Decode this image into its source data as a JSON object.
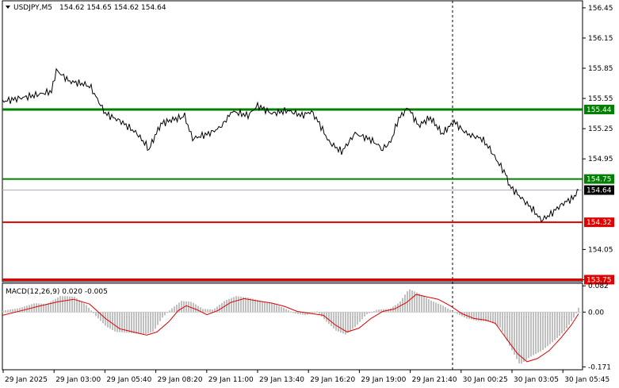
{
  "header": {
    "dropdown_icon": "triangle-down-icon",
    "symbol_label": "USDJPY,M5",
    "ohlc": "154.62 154.65 154.62 154.64"
  },
  "macd_panel": {
    "label": "MACD(12,26,9) 0.020 -0.005"
  },
  "colors": {
    "background": "#ffffff",
    "price_line": "#000000",
    "green_level": "#008000",
    "red_level": "#e00000",
    "histogram": "#c0c0c0",
    "signal_line": "#e00000",
    "badge_green": "#008000",
    "badge_red": "#e00000",
    "current_price_badge": "#000000"
  },
  "chart_data": [
    {
      "type": "line",
      "title": "USDJPY,M5",
      "x": [
        "29 Jan 2025",
        "29 Jan 03:00",
        "29 Jan 05:40",
        "29 Jan 08:20",
        "29 Jan 11:00",
        "29 Jan 13:40",
        "29 Jan 16:20",
        "29 Jan 19:00",
        "29 Jan 21:40",
        "30 Jan 00:25",
        "30 Jan 03:05",
        "30 Jan 05:45"
      ],
      "ylim": [
        153.73,
        156.52
      ],
      "y_ticks": [
        "156.45",
        "156.15",
        "155.85",
        "155.55",
        "155.25",
        "154.95",
        "154.05",
        "153.75"
      ],
      "levels": [
        {
          "price": "155.44",
          "color": "green"
        },
        {
          "price": "154.75",
          "color": "green"
        },
        {
          "price": "154.32",
          "color": "red"
        },
        {
          "price": "153.75",
          "color": "red"
        }
      ],
      "current_price": "154.64",
      "vertical_marker": "29 Jan 21:40",
      "series": [
        {
          "values": [
            [
              0,
              155.52
            ],
            [
              40,
              155.58
            ],
            [
              62,
              155.62
            ],
            [
              68,
              155.83
            ],
            [
              85,
              155.72
            ],
            [
              110,
              155.68
            ],
            [
              130,
              155.4
            ],
            [
              150,
              155.32
            ],
            [
              170,
              155.2
            ],
            [
              185,
              155.05
            ],
            [
              200,
              155.3
            ],
            [
              215,
              155.34
            ],
            [
              230,
              155.37
            ],
            [
              240,
              155.15
            ],
            [
              260,
              155.2
            ],
            [
              275,
              155.26
            ],
            [
              290,
              155.42
            ],
            [
              310,
              155.38
            ],
            [
              322,
              155.48
            ],
            [
              340,
              155.4
            ],
            [
              360,
              155.43
            ],
            [
              378,
              155.38
            ],
            [
              390,
              155.42
            ],
            [
              400,
              155.3
            ],
            [
              412,
              155.12
            ],
            [
              428,
              155.02
            ],
            [
              445,
              155.2
            ],
            [
              465,
              155.14
            ],
            [
              480,
              155.05
            ],
            [
              490,
              155.12
            ],
            [
              500,
              155.35
            ],
            [
              512,
              155.46
            ],
            [
              525,
              155.28
            ],
            [
              540,
              155.36
            ],
            [
              555,
              155.2
            ],
            [
              570,
              155.32
            ],
            [
              585,
              155.2
            ],
            [
              605,
              155.15
            ],
            [
              615,
              155.05
            ],
            [
              625,
              154.92
            ],
            [
              635,
              154.8
            ],
            [
              640,
              154.68
            ],
            [
              650,
              154.6
            ],
            [
              660,
              154.52
            ],
            [
              670,
              154.44
            ],
            [
              680,
              154.34
            ],
            [
              692,
              154.4
            ],
            [
              700,
              154.46
            ],
            [
              710,
              154.52
            ],
            [
              720,
              154.56
            ],
            [
              727,
              154.64
            ]
          ]
        }
      ]
    },
    {
      "type": "bar",
      "title": "MACD(12,26,9)",
      "ylim": [
        -0.18,
        0.09
      ],
      "y_ticks": [
        "0.082",
        "0.00",
        "-0.171"
      ],
      "macd": "0.020",
      "signal": "-0.005",
      "series": [
        {
          "values": [
            [
              0,
              0.005
            ],
            [
              20,
              0.012
            ],
            [
              40,
              0.028
            ],
            [
              55,
              0.025
            ],
            [
              72,
              0.05
            ],
            [
              90,
              0.048
            ],
            [
              105,
              0.022
            ],
            [
              118,
              -0.015
            ],
            [
              130,
              -0.045
            ],
            [
              142,
              -0.062
            ],
            [
              160,
              -0.065
            ],
            [
              178,
              -0.07
            ],
            [
              190,
              -0.06
            ],
            [
              200,
              -0.02
            ],
            [
              212,
              0.01
            ],
            [
              225,
              0.035
            ],
            [
              238,
              0.032
            ],
            [
              252,
              0.01
            ],
            [
              265,
              0.008
            ],
            [
              280,
              0.036
            ],
            [
              294,
              0.05
            ],
            [
              310,
              0.045
            ],
            [
              325,
              0.035
            ],
            [
              340,
              0.028
            ],
            [
              355,
              0.012
            ],
            [
              368,
              -0.004
            ],
            [
              382,
              -0.01
            ],
            [
              396,
              0.002
            ],
            [
              408,
              -0.03
            ],
            [
              420,
              -0.058
            ],
            [
              432,
              -0.07
            ],
            [
              445,
              -0.045
            ],
            [
              458,
              -0.008
            ],
            [
              472,
              0.008
            ],
            [
              488,
              0.01
            ],
            [
              500,
              0.03
            ],
            [
              512,
              0.072
            ],
            [
              525,
              0.058
            ],
            [
              540,
              0.036
            ],
            [
              555,
              0.02
            ],
            [
              570,
              -0.002
            ],
            [
              585,
              -0.02
            ],
            [
              600,
              -0.028
            ],
            [
              615,
              -0.03
            ],
            [
              628,
              -0.05
            ],
            [
              640,
              -0.11
            ],
            [
              652,
              -0.165
            ],
            [
              665,
              -0.14
            ],
            [
              680,
              -0.12
            ],
            [
              695,
              -0.09
            ],
            [
              710,
              -0.055
            ],
            [
              722,
              -0.01
            ],
            [
              727,
              0.02
            ]
          ]
        },
        {
          "values": [
            [
              0,
              -0.01
            ],
            [
              25,
              0.005
            ],
            [
              45,
              0.018
            ],
            [
              70,
              0.032
            ],
            [
              90,
              0.04
            ],
            [
              110,
              0.025
            ],
            [
              130,
              -0.02
            ],
            [
              148,
              -0.052
            ],
            [
              165,
              -0.062
            ],
            [
              182,
              -0.072
            ],
            [
              195,
              -0.062
            ],
            [
              210,
              -0.03
            ],
            [
              222,
              0.005
            ],
            [
              232,
              0.02
            ],
            [
              245,
              0.008
            ],
            [
              258,
              -0.008
            ],
            [
              272,
              0.005
            ],
            [
              288,
              0.03
            ],
            [
              305,
              0.042
            ],
            [
              322,
              0.035
            ],
            [
              340,
              0.028
            ],
            [
              356,
              0.018
            ],
            [
              372,
              0.002
            ],
            [
              388,
              -0.004
            ],
            [
              405,
              -0.01
            ],
            [
              420,
              -0.04
            ],
            [
              435,
              -0.062
            ],
            [
              450,
              -0.05
            ],
            [
              465,
              -0.02
            ],
            [
              480,
              0.002
            ],
            [
              495,
              0.01
            ],
            [
              510,
              0.03
            ],
            [
              522,
              0.055
            ],
            [
              535,
              0.048
            ],
            [
              550,
              0.04
            ],
            [
              565,
              0.02
            ],
            [
              580,
              -0.005
            ],
            [
              595,
              -0.02
            ],
            [
              610,
              -0.025
            ],
            [
              622,
              -0.035
            ],
            [
              635,
              -0.08
            ],
            [
              650,
              -0.13
            ],
            [
              662,
              -0.155
            ],
            [
              675,
              -0.145
            ],
            [
              690,
              -0.12
            ],
            [
              705,
              -0.08
            ],
            [
              718,
              -0.04
            ],
            [
              727,
              -0.005
            ]
          ]
        }
      ]
    }
  ]
}
